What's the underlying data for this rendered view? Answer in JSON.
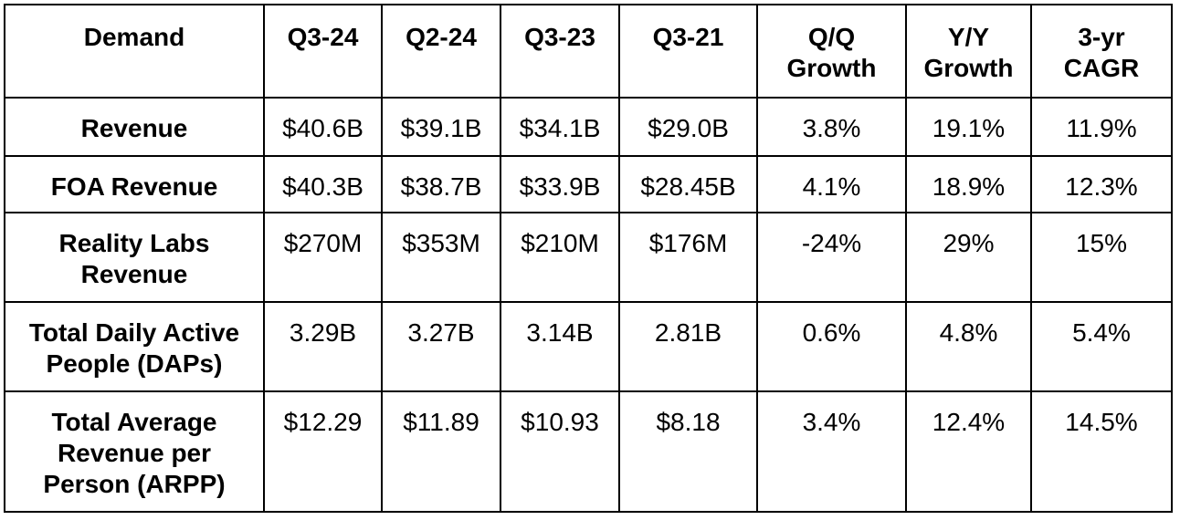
{
  "table": {
    "headers": [
      [
        "Demand"
      ],
      [
        "Q3-24"
      ],
      [
        "Q2-24"
      ],
      [
        "Q3-23"
      ],
      [
        "Q3-21"
      ],
      [
        "Q/Q",
        "Growth"
      ],
      [
        "Y/Y",
        "Growth"
      ],
      [
        "3-yr",
        "CAGR"
      ]
    ],
    "rows": [
      {
        "label": [
          "Revenue"
        ],
        "cells": [
          "$40.6B",
          "$39.1B",
          "$34.1B",
          "$29.0B",
          "3.8%",
          "19.1%",
          "11.9%"
        ]
      },
      {
        "label": [
          "FOA Revenue"
        ],
        "cells": [
          "$40.3B",
          "$38.7B",
          "$33.9B",
          "$28.45B",
          "4.1%",
          "18.9%",
          "12.3%"
        ]
      },
      {
        "label": [
          "Reality Labs",
          "Revenue"
        ],
        "cells": [
          "$270M",
          "$353M",
          "$210M",
          "$176M",
          "-24%",
          "29%",
          "15%"
        ]
      },
      {
        "label": [
          "Total Daily Active",
          "People (DAPs)"
        ],
        "cells": [
          "3.29B",
          "3.27B",
          "3.14B",
          "2.81B",
          "0.6%",
          "4.8%",
          "5.4%"
        ]
      },
      {
        "label": [
          "Total Average",
          "Revenue per",
          "Person (ARPP)"
        ],
        "cells": [
          "$12.29",
          "$11.89",
          "$10.93",
          "$8.18",
          "3.4%",
          "12.4%",
          "14.5%"
        ]
      }
    ]
  }
}
